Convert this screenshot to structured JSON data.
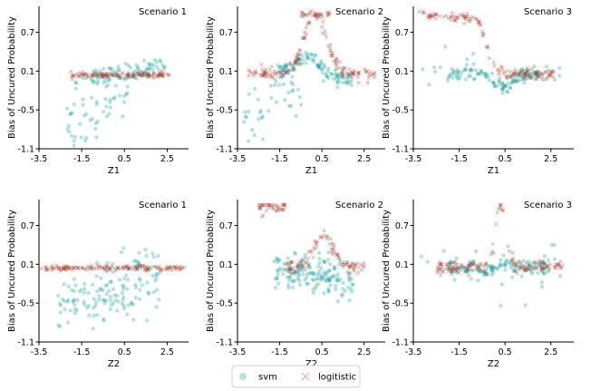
{
  "legend": {
    "entries": [
      {
        "name": "svm",
        "marker": "circle",
        "color": "#1a9a9a"
      },
      {
        "name": "logitistic",
        "marker": "x",
        "color": "#a03c2a"
      }
    ]
  },
  "chart_data": [
    {
      "type": "scatter",
      "id": "p1",
      "title": "Scenario 1",
      "xlabel": "Z1",
      "ylabel": "Bias of Uncured Probability",
      "xlim": [
        -3.5,
        3.5
      ],
      "ylim": [
        -1.1,
        1.1
      ],
      "xticks": [
        "-3.5",
        "-1.5",
        "0.5",
        "2.5"
      ],
      "yticks": [
        "-1.1",
        "-0.5",
        "0.1",
        "0.7"
      ],
      "series": [
        {
          "name": "svm",
          "description": "band near 0.1 across x (-1.5..2.5); scattered negative bias down to -1.0 for x in -2..0.5"
        },
        {
          "name": "logitistic",
          "description": "tight horizontal band at y ~ 0.05 for x in -2..2.5"
        }
      ]
    },
    {
      "type": "scatter",
      "id": "p2",
      "title": "Scenario 2",
      "xlabel": "Z1",
      "ylabel": "Bias of Uncured Probability",
      "xlim": [
        -3.5,
        3.5
      ],
      "ylim": [
        -1.1,
        1.1
      ],
      "xticks": [
        "-3.5",
        "-1.5",
        "0.5",
        "2.5"
      ],
      "yticks": [
        "-1.1",
        "-0.5",
        "0.1",
        "0.7"
      ],
      "series": [
        {
          "name": "svm",
          "description": "S-curve around 0 rising to ~0.3 near x=0; negative scatter for x < -1"
        },
        {
          "name": "logitistic",
          "description": "bell rising to ~1.0 for x in -0.5..0.8; ~0.1 elsewhere"
        }
      ]
    },
    {
      "type": "scatter",
      "id": "p3",
      "title": "Scenario 3",
      "xlabel": "Z1",
      "ylabel": "Bias of Uncured Probability",
      "xlim": [
        -3.5,
        3.5
      ],
      "ylim": [
        -1.1,
        1.1
      ],
      "xticks": [
        "-3.5",
        "-1.5",
        "0.5",
        "2.5"
      ],
      "yticks": [
        "-1.1",
        "-0.5",
        "0.1",
        "0.7"
      ],
      "series": [
        {
          "name": "svm",
          "description": "cluster near 0.05 with dip to -0.3 near x=0.5"
        },
        {
          "name": "logitistic",
          "description": "~1.0 at x < -1, dropping to ~0.05 around x = -0.5"
        }
      ]
    },
    {
      "type": "scatter",
      "id": "p4",
      "title": "Scenario 1",
      "xlabel": "Z2",
      "ylabel": "Bias of Uncured Probability",
      "xlim": [
        -3.5,
        3.5
      ],
      "ylim": [
        -1.1,
        1.1
      ],
      "xticks": [
        "-3.5",
        "-1.5",
        "0.5",
        "2.5"
      ],
      "yticks": [
        "-1.1",
        "-0.5",
        "0.1",
        "0.7"
      ],
      "series": [
        {
          "name": "svm",
          "description": "broad cloud from -0.9 to 0.35 rising with x"
        },
        {
          "name": "logitistic",
          "description": "flat band at y ~ 0.05 over the full x range"
        }
      ]
    },
    {
      "type": "scatter",
      "id": "p5",
      "title": "Scenario 2",
      "xlabel": "Z2",
      "ylabel": "Bias of Uncured Probability",
      "xlim": [
        -3.5,
        3.5
      ],
      "ylim": [
        -1.1,
        1.1
      ],
      "xticks": [
        "-3.5",
        "-1.5",
        "0.5",
        "2.5"
      ],
      "yticks": [
        "-1.1",
        "-0.5",
        "0.1",
        "0.7"
      ],
      "series": [
        {
          "name": "svm",
          "description": "decreasing curve from 0.05 to -0.4 for x in -1.5..1.5, with scatter"
        },
        {
          "name": "logitistic",
          "description": "~1.0 at x < -1.2 dropping to 0.1; hump to 0.55 near x = 0.6"
        }
      ]
    },
    {
      "type": "scatter",
      "id": "p6",
      "title": "Scenario 3",
      "xlabel": "Z2",
      "ylabel": "Bias of Uncured Probability",
      "xlim": [
        -3.5,
        3.5
      ],
      "ylim": [
        -1.1,
        1.1
      ],
      "xticks": [
        "-3.5",
        "-1.5",
        "0.5",
        "2.5"
      ],
      "yticks": [
        "-1.1",
        "-0.5",
        "0.1",
        "0.7"
      ],
      "series": [
        {
          "name": "svm",
          "description": "cluster near 0.05 with wiggle around x = 0"
        },
        {
          "name": "logitistic",
          "description": "spike to ~1.0 near x = 0.3; flat ~0.05 elsewhere"
        }
      ]
    }
  ]
}
